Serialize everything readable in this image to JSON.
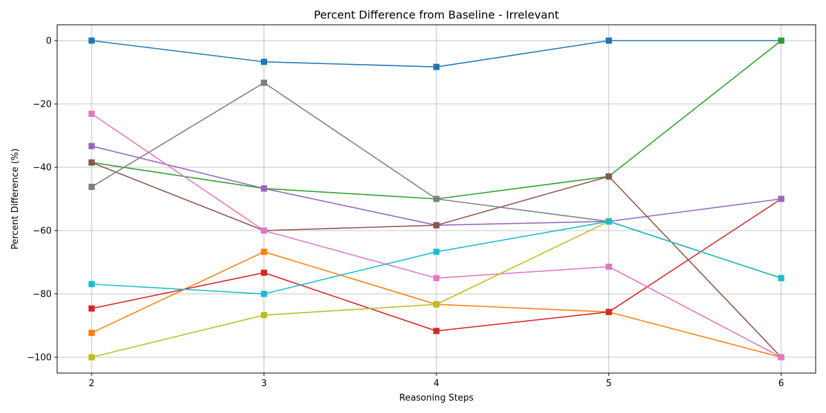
{
  "chart_data": {
    "type": "line",
    "title": "Percent Difference from Baseline - Irrelevant",
    "xlabel": "Reasoning Steps",
    "ylabel": "Percent Difference (%)",
    "x": [
      2,
      3,
      4,
      5,
      6
    ],
    "xticks": [
      "2",
      "3",
      "4",
      "5",
      "6"
    ],
    "yticks": [
      "0",
      "−20",
      "−40",
      "−60",
      "−80",
      "−100"
    ],
    "ytick_values": [
      0,
      -20,
      -40,
      -60,
      -80,
      -100
    ],
    "xlim": [
      1.8,
      6.2
    ],
    "ylim": [
      -105,
      5
    ],
    "grid": true,
    "marker": "square",
    "series": [
      {
        "color": "#1f77b4",
        "values": [
          0,
          -6.7,
          -8.3,
          0,
          0
        ]
      },
      {
        "color": "#ff7f0e",
        "values": [
          -92.3,
          -66.7,
          -83.3,
          -85.7,
          -100
        ]
      },
      {
        "color": "#2ca02c",
        "values": [
          -38.5,
          -46.7,
          -50,
          -42.9,
          0
        ]
      },
      {
        "color": "#d62728",
        "values": [
          -84.6,
          -73.3,
          -91.7,
          -85.7,
          -50
        ]
      },
      {
        "color": "#9467bd",
        "values": [
          -33.3,
          -46.7,
          -58.3,
          -57.1,
          -50
        ]
      },
      {
        "color": "#8c564b",
        "values": [
          -38.5,
          -60,
          -58.3,
          -42.9,
          -100
        ]
      },
      {
        "color": "#e377c2",
        "values": [
          -23.1,
          -60,
          -75,
          -71.4,
          -100
        ]
      },
      {
        "color": "#7f7f7f",
        "values": [
          -46.2,
          -13.3,
          -50,
          -57.1,
          -75
        ]
      },
      {
        "color": "#bcbd22",
        "values": [
          -100,
          -86.7,
          -83.3,
          -57.1,
          -75
        ]
      },
      {
        "color": "#17becf",
        "values": [
          -76.9,
          -80,
          -66.7,
          -57.1,
          -75
        ]
      }
    ]
  }
}
